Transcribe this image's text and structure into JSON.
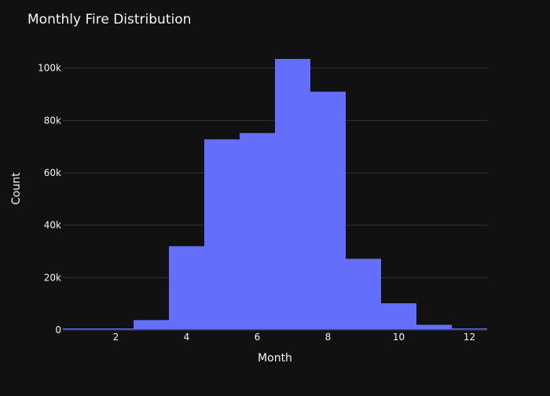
{
  "chart_data": {
    "type": "bar",
    "title": "Monthly Fire Distribution",
    "xlabel": "Month",
    "ylabel": "Count",
    "x": [
      1,
      2,
      3,
      4,
      5,
      6,
      7,
      8,
      9,
      10,
      11,
      12
    ],
    "values": [
      600,
      600,
      3800,
      32000,
      72800,
      75200,
      103500,
      91000,
      27200,
      10200,
      2000,
      600
    ],
    "xlim": [
      0.5,
      12.5
    ],
    "ylim": [
      0,
      108000
    ],
    "x_ticks": [
      2,
      4,
      6,
      8,
      10,
      12
    ],
    "x_tick_labels": [
      "2",
      "4",
      "6",
      "8",
      "10",
      "12"
    ],
    "y_ticks": [
      0,
      20000,
      40000,
      60000,
      80000,
      100000
    ],
    "y_tick_labels": [
      "0",
      "20k",
      "40k",
      "60k",
      "80k",
      "100k"
    ],
    "grid": true,
    "bar_color": "#636efa",
    "background_color": "#111111",
    "grid_color": "#283442",
    "text_color": "#f2f5fa"
  }
}
